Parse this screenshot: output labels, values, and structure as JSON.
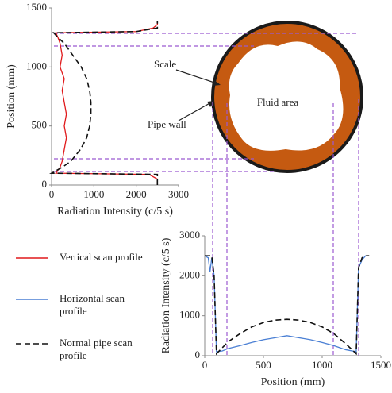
{
  "chart_data": [
    {
      "type": "line",
      "orientation": "horizontal",
      "x_label": "Radiation Intensity (c/5 s)",
      "y_label": "Position (mm)",
      "xlim": [
        0,
        3000
      ],
      "xticks": [
        0,
        1000,
        2000,
        3000
      ],
      "ylim": [
        0,
        1500
      ],
      "yticks": [
        0,
        500,
        1000,
        1500
      ],
      "x": [
        0,
        50,
        90,
        100,
        150,
        200,
        300,
        400,
        500,
        600,
        700,
        800,
        900,
        1000,
        1100,
        1200,
        1250,
        1290,
        1300,
        1330,
        1360,
        1390
      ],
      "series": [
        {
          "name": "Vertical scan profile",
          "color": "#e0191b",
          "dash": false,
          "values": [
            2500,
            2500,
            2300,
            100,
            200,
            250,
            300,
            350,
            300,
            350,
            300,
            250,
            300,
            200,
            250,
            200,
            150,
            100,
            2000,
            2400,
            2500,
            2500
          ]
        },
        {
          "name": "Normal pipe scan profile",
          "color": "#111111",
          "dash": true,
          "values": [
            2500,
            2500,
            2500,
            0,
            250,
            450,
            680,
            830,
            900,
            930,
            930,
            900,
            830,
            700,
            500,
            300,
            150,
            50,
            2000,
            2500,
            2500,
            2500
          ]
        }
      ]
    },
    {
      "type": "line",
      "orientation": "vertical",
      "x_label": "Position (mm)",
      "y_label": "Radiation Intensity (c/5 s)",
      "xlim": [
        0,
        1500
      ],
      "xticks": [
        0,
        500,
        1000,
        1500
      ],
      "ylim": [
        0,
        3000
      ],
      "yticks": [
        0,
        1000,
        2000,
        3000
      ],
      "x": [
        0,
        30,
        45,
        60,
        80,
        100,
        150,
        200,
        300,
        400,
        500,
        600,
        700,
        800,
        900,
        1000,
        1100,
        1200,
        1290,
        1310,
        1340,
        1370,
        1400
      ],
      "series": [
        {
          "name": "Horizontal scan profile",
          "color": "#4a7fd4",
          "dash": false,
          "values": [
            2500,
            2450,
            2100,
            2450,
            2000,
            100,
            120,
            180,
            250,
            330,
            400,
            450,
            500,
            450,
            400,
            330,
            250,
            150,
            100,
            2200,
            2400,
            2500,
            2500
          ]
        },
        {
          "color": "#111111",
          "dash": true,
          "values": [
            2500,
            2500,
            2500,
            2500,
            2000,
            50,
            200,
            350,
            550,
            720,
            830,
            890,
            910,
            890,
            830,
            720,
            550,
            300,
            50,
            2200,
            2450,
            2500,
            2500
          ]
        }
      ]
    }
  ],
  "diagram": {
    "labels": [
      "Scale",
      "Pipe wall",
      "Fluid area"
    ]
  }
}
